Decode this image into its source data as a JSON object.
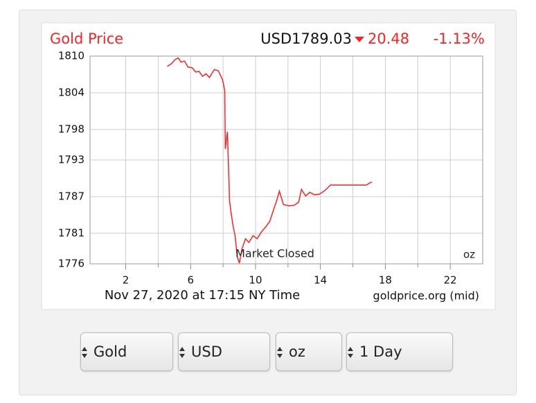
{
  "chart_data": {
    "type": "line",
    "title": "Gold Price",
    "price": "USD1789.03",
    "change": "20.48",
    "change_pct": "-1.13%",
    "annotation": "Market Closed",
    "unit": "oz",
    "timestamp": "Nov 27, 2020 at 17:15 NY Time",
    "source": "goldprice.org (mid)",
    "color": "#ff2020",
    "x": [
      4.56,
      4.81,
      5.03,
      5.24,
      5.41,
      5.62,
      5.84,
      6.09,
      6.31,
      6.52,
      6.73,
      6.95,
      7.16,
      7.46,
      7.71,
      7.97,
      8.1,
      8.14,
      8.27,
      8.4,
      8.48,
      8.61,
      8.74,
      8.87,
      9.0,
      9.16,
      9.38,
      9.59,
      9.85,
      10.1,
      10.36,
      10.61,
      10.87,
      11.08,
      11.3,
      11.47,
      11.72,
      12.06,
      12.4,
      12.66,
      12.83,
      13.09,
      13.34,
      13.64,
      13.94,
      14.28,
      14.62,
      15.56,
      16.84,
      17.01,
      17.18
    ],
    "values": [
      1808.3,
      1808.75,
      1809.4,
      1809.7,
      1809.0,
      1809.2,
      1808.2,
      1808.1,
      1807.4,
      1807.5,
      1806.7,
      1807.1,
      1806.5,
      1807.8,
      1807.6,
      1806.1,
      1804.4,
      1794.8,
      1797.6,
      1786.3,
      1784.6,
      1782.3,
      1780.6,
      1777.2,
      1776.1,
      1778.4,
      1780.1,
      1779.5,
      1780.6,
      1780.1,
      1781.2,
      1782.0,
      1782.9,
      1784.6,
      1786.3,
      1787.9,
      1785.7,
      1785.5,
      1785.6,
      1786.1,
      1788.2,
      1787.1,
      1787.7,
      1787.3,
      1787.4,
      1788.0,
      1788.9,
      1788.9,
      1788.9,
      1789.2,
      1789.4
    ],
    "xlim": [
      -0.2,
      24
    ],
    "ylim": [
      1776,
      1810
    ],
    "xticks": [
      2,
      6,
      10,
      14,
      18,
      22
    ],
    "xgrid": [
      4,
      8,
      12,
      16,
      20
    ],
    "yticks": [
      1776,
      1781,
      1787,
      1793,
      1798,
      1804,
      1810
    ],
    "grid": true
  },
  "controls": [
    "Gold",
    "USD",
    "oz",
    "1 Day"
  ]
}
